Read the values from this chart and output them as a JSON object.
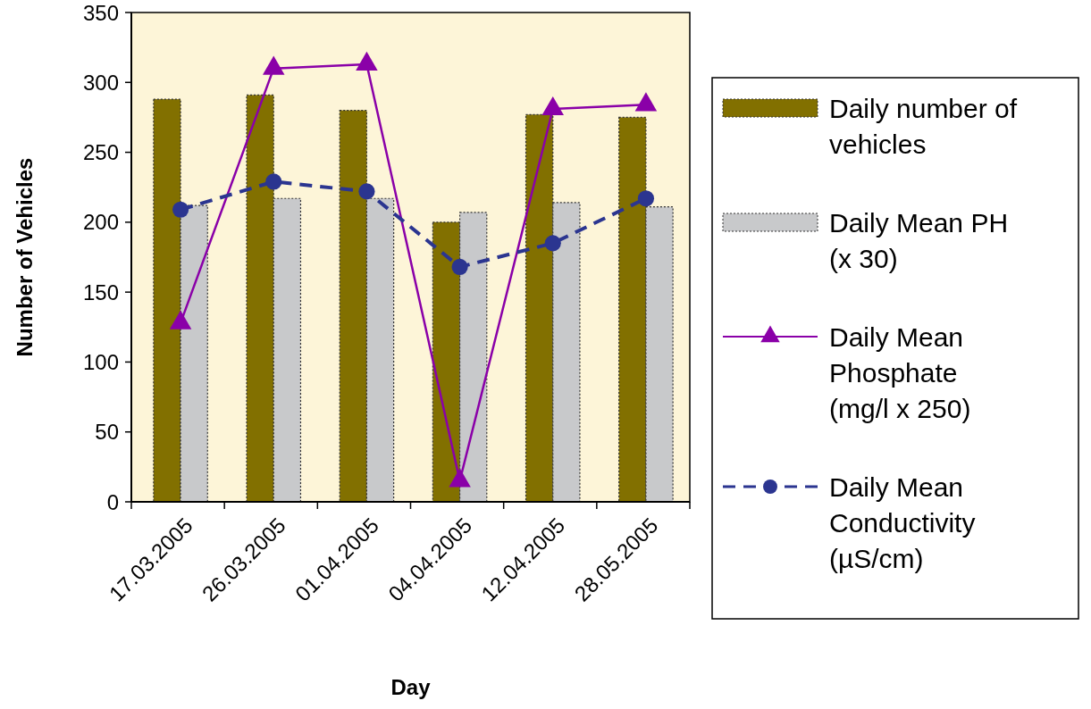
{
  "chart_data": {
    "type": "bar",
    "xlabel": "Day",
    "ylabel": "Number of Vehicles",
    "categories": [
      "17.03.2005",
      "26.03.2005",
      "01.04.2005",
      "04.04.2005",
      "12.04.2005",
      "28.05.2005"
    ],
    "series": [
      {
        "name": "Daily number of vehicles",
        "color": "#827000",
        "values": [
          288,
          291,
          280,
          200,
          277,
          275
        ]
      },
      {
        "name": "Daily Mean PH (x 30)",
        "color": "#c8c9cb",
        "values": [
          212,
          217,
          217,
          207,
          214,
          211
        ]
      },
      {
        "name": "Daily Mean Phosphate (mg/l x 250)",
        "type": "line",
        "color": "#8a00a8",
        "marker": "triangle",
        "line_style": "solid",
        "values": [
          128,
          310,
          313,
          15,
          281,
          284
        ]
      },
      {
        "name": "Daily Mean Conductivity (µS/cm)",
        "type": "line",
        "color": "#2b3590",
        "marker": "circle",
        "line_style": "dashed",
        "values": [
          209,
          229,
          222,
          168,
          185,
          217
        ]
      }
    ],
    "ylim": [
      0,
      350
    ],
    "yticks": [
      0,
      50,
      100,
      150,
      200,
      250,
      300,
      350
    ],
    "legend": "right"
  }
}
